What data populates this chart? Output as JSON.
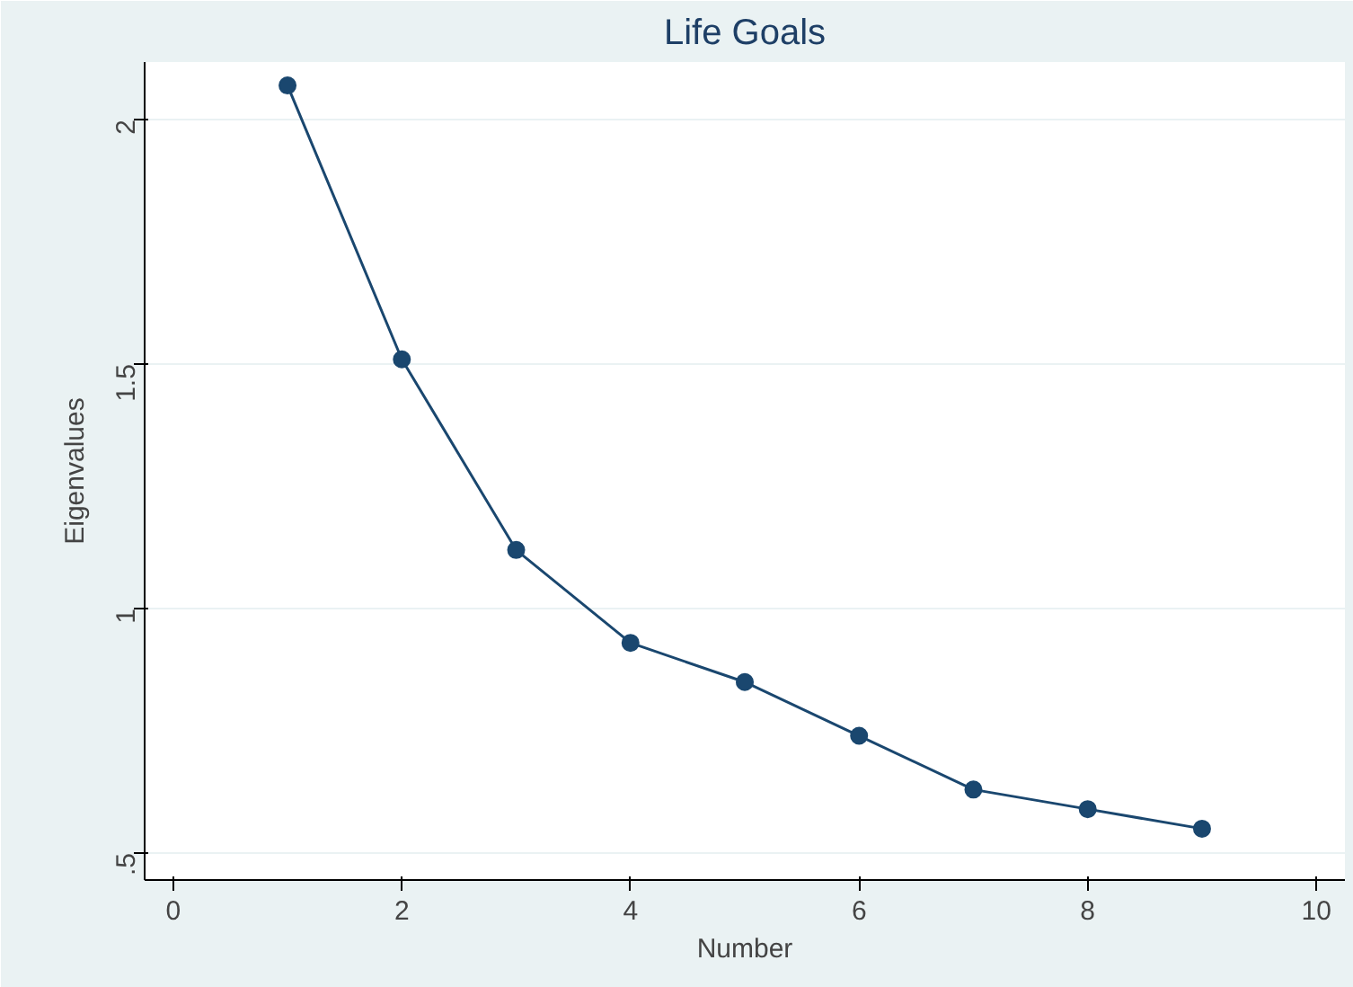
{
  "chart_data": {
    "type": "line",
    "title": "Life Goals",
    "xlabel": "Number",
    "ylabel": "Eigenvalues",
    "x": [
      1,
      2,
      3,
      4,
      5,
      6,
      7,
      8,
      9
    ],
    "series": [
      {
        "color": "#1a476f",
        "values": [
          2.07,
          1.51,
          1.12,
          0.93,
          0.85,
          0.74,
          0.63,
          0.59,
          0.55
        ]
      }
    ],
    "xlim": [
      -0.25,
      10.25
    ],
    "ylim": [
      0.445,
      2.118
    ],
    "xticks": [
      0,
      2,
      4,
      6,
      8,
      10
    ],
    "yticks": [
      {
        "value": 0.5,
        "label": ".5"
      },
      1,
      1.5,
      2
    ],
    "grid": "y",
    "marker": "circle",
    "line_style": "solid"
  }
}
